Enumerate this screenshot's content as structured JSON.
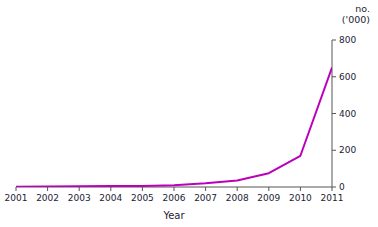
{
  "chart_data": {
    "type": "line",
    "xlabel": "Year",
    "ylabel": [
      "no.",
      "('000)"
    ],
    "x": [
      2001,
      2002,
      2003,
      2004,
      2005,
      2006,
      2007,
      2008,
      2009,
      2010,
      2011
    ],
    "values": [
      2,
      3,
      4,
      5,
      6,
      10,
      20,
      35,
      75,
      170,
      650
    ],
    "color": "#bb00bb",
    "xlim": [
      2001,
      2011
    ],
    "xticks": [
      2001,
      2002,
      2003,
      2004,
      2005,
      2006,
      2007,
      2008,
      2009,
      2010,
      2011
    ],
    "ylim": [
      0,
      800
    ],
    "yticks": [
      0,
      200,
      400,
      600,
      800
    ],
    "grid": false
  }
}
